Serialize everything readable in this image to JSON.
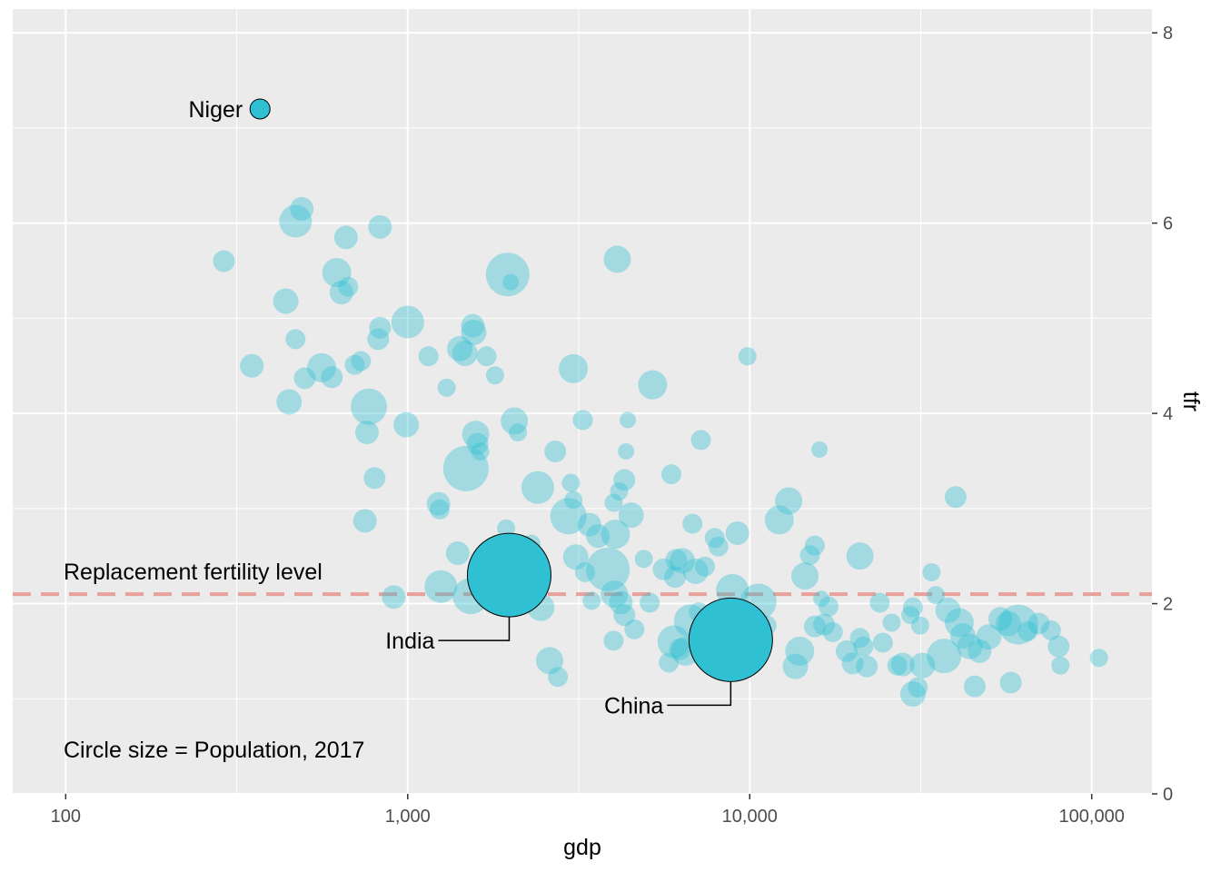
{
  "chart_data": {
    "type": "scatter",
    "xlabel": "gdp",
    "ylabel": "tfr",
    "x_scale": "log10",
    "xlim": [
      70,
      150000
    ],
    "ylim": [
      0,
      8.25
    ],
    "x_ticks": [
      {
        "value": 100,
        "label": "100"
      },
      {
        "value": 1000,
        "label": "1,000"
      },
      {
        "value": 10000,
        "label": "10,000"
      },
      {
        "value": 100000,
        "label": "100,000"
      }
    ],
    "y_ticks": [
      {
        "value": 0,
        "label": "0"
      },
      {
        "value": 2,
        "label": "2"
      },
      {
        "value": 4,
        "label": "4"
      },
      {
        "value": 6,
        "label": "6"
      },
      {
        "value": 8,
        "label": "8"
      }
    ],
    "y_axis_position": "right",
    "grid": true,
    "reference_line": {
      "y": 2.1,
      "label": "Replacement fertility level",
      "color": "#e8a09a",
      "label_color": "#e07b72"
    },
    "size_note": "Circle size = Population, 2017",
    "colors": {
      "point": "#2fc1d3",
      "panel": "#ebebeb",
      "grid": "#ffffff",
      "note": "#7f7f7f"
    },
    "highlighted": [
      {
        "name": "Niger",
        "gdp": 370,
        "tfr": 7.2,
        "size": 11
      },
      {
        "name": "India",
        "gdp": 1980,
        "tfr": 2.3,
        "size": 46
      },
      {
        "name": "China",
        "gdp": 8800,
        "tfr": 1.62,
        "size": 46
      }
    ],
    "points": [
      [
        290,
        5.6,
        12
      ],
      [
        350,
        4.5,
        13
      ],
      [
        440,
        5.18,
        14
      ],
      [
        450,
        4.12,
        14
      ],
      [
        470,
        4.78,
        11
      ],
      [
        470,
        6.02,
        18
      ],
      [
        490,
        6.15,
        13
      ],
      [
        500,
        4.37,
        12
      ],
      [
        560,
        4.48,
        16
      ],
      [
        600,
        4.38,
        12
      ],
      [
        620,
        5.48,
        16
      ],
      [
        640,
        5.27,
        13
      ],
      [
        660,
        5.85,
        13
      ],
      [
        670,
        5.33,
        11
      ],
      [
        700,
        4.51,
        11
      ],
      [
        730,
        4.55,
        11
      ],
      [
        750,
        2.87,
        13
      ],
      [
        760,
        3.8,
        13
      ],
      [
        770,
        4.07,
        20
      ],
      [
        800,
        3.32,
        12
      ],
      [
        820,
        4.78,
        12
      ],
      [
        830,
        4.9,
        12
      ],
      [
        830,
        5.96,
        13
      ],
      [
        910,
        2.07,
        13
      ],
      [
        990,
        3.88,
        14
      ],
      [
        1000,
        4.96,
        18
      ],
      [
        1150,
        4.6,
        11
      ],
      [
        1230,
        3.05,
        13
      ],
      [
        1240,
        2.99,
        11
      ],
      [
        1250,
        2.18,
        18
      ],
      [
        1300,
        4.27,
        10
      ],
      [
        1400,
        2.53,
        13
      ],
      [
        1420,
        4.68,
        14
      ],
      [
        1470,
        4.63,
        14
      ],
      [
        1480,
        3.42,
        25
      ],
      [
        1530,
        2.08,
        20
      ],
      [
        1550,
        4.92,
        13
      ],
      [
        1560,
        4.85,
        14
      ],
      [
        1580,
        3.78,
        15
      ],
      [
        1600,
        3.68,
        12
      ],
      [
        1630,
        3.6,
        10
      ],
      [
        1700,
        4.6,
        11
      ],
      [
        1800,
        4.4,
        10
      ],
      [
        1940,
        2.79,
        10
      ],
      [
        1960,
        5.46,
        24
      ],
      [
        2000,
        5.38,
        9
      ],
      [
        2050,
        3.92,
        15
      ],
      [
        2100,
        3.8,
        10
      ],
      [
        2300,
        2.63,
        10
      ],
      [
        2400,
        3.22,
        18
      ],
      [
        2450,
        1.96,
        15
      ],
      [
        2600,
        1.4,
        15
      ],
      [
        2700,
        3.6,
        12
      ],
      [
        2750,
        1.23,
        11
      ],
      [
        2950,
        2.92,
        20
      ],
      [
        3000,
        3.27,
        10
      ],
      [
        3050,
        3.09,
        10
      ],
      [
        3050,
        4.47,
        16
      ],
      [
        3100,
        2.49,
        14
      ],
      [
        3250,
        3.93,
        11
      ],
      [
        3300,
        2.33,
        11
      ],
      [
        3400,
        2.83,
        13
      ],
      [
        3450,
        2.03,
        10
      ],
      [
        3600,
        2.71,
        13
      ],
      [
        3850,
        2.36,
        24
      ],
      [
        4000,
        3.06,
        10
      ],
      [
        4000,
        1.61,
        11
      ],
      [
        4020,
        2.1,
        15
      ],
      [
        4050,
        2.73,
        16
      ],
      [
        4100,
        5.62,
        15
      ],
      [
        4150,
        3.18,
        10
      ],
      [
        4200,
        2.01,
        13
      ],
      [
        4300,
        1.88,
        12
      ],
      [
        4300,
        3.3,
        12
      ],
      [
        4350,
        3.6,
        9
      ],
      [
        4400,
        3.93,
        9
      ],
      [
        4500,
        2.93,
        14
      ],
      [
        4600,
        1.73,
        11
      ],
      [
        4900,
        2.47,
        10
      ],
      [
        5100,
        2.01,
        11
      ],
      [
        5200,
        4.3,
        16
      ],
      [
        5600,
        2.36,
        12
      ],
      [
        5800,
        1.38,
        11
      ],
      [
        5900,
        3.36,
        11
      ],
      [
        6000,
        1.6,
        18
      ],
      [
        6050,
        2.28,
        12
      ],
      [
        6100,
        2.46,
        12
      ],
      [
        6250,
        1.52,
        12
      ],
      [
        6350,
        2.45,
        14
      ],
      [
        6500,
        1.5,
        16
      ],
      [
        6700,
        1.82,
        18
      ],
      [
        6800,
        2.84,
        11
      ],
      [
        6950,
        2.34,
        14
      ],
      [
        7100,
        1.91,
        11
      ],
      [
        7200,
        3.72,
        11
      ],
      [
        7400,
        2.39,
        11
      ],
      [
        7900,
        2.69,
        11
      ],
      [
        8100,
        2.6,
        11
      ],
      [
        8900,
        2.14,
        18
      ],
      [
        9200,
        2.74,
        13
      ],
      [
        9850,
        4.6,
        10
      ],
      [
        10600,
        2.02,
        20
      ],
      [
        11200,
        1.77,
        11
      ],
      [
        12200,
        2.88,
        16
      ],
      [
        13000,
        3.08,
        15
      ],
      [
        13600,
        1.34,
        14
      ],
      [
        14000,
        1.5,
        16
      ],
      [
        14500,
        2.29,
        15
      ],
      [
        15000,
        2.51,
        11
      ],
      [
        15500,
        2.61,
        11
      ],
      [
        16000,
        3.62,
        9
      ],
      [
        15500,
        1.76,
        12
      ],
      [
        16200,
        2.05,
        9
      ],
      [
        16500,
        1.78,
        12
      ],
      [
        17000,
        1.97,
        11
      ],
      [
        17500,
        1.7,
        11
      ],
      [
        19200,
        1.5,
        12
      ],
      [
        20000,
        1.37,
        12
      ],
      [
        21000,
        2.5,
        15
      ],
      [
        21000,
        1.64,
        11
      ],
      [
        21500,
        1.55,
        11
      ],
      [
        22000,
        1.34,
        12
      ],
      [
        24000,
        2.01,
        11
      ],
      [
        24500,
        1.59,
        11
      ],
      [
        26000,
        1.8,
        10
      ],
      [
        27000,
        1.35,
        11
      ],
      [
        28000,
        1.36,
        13
      ],
      [
        29500,
        1.88,
        10
      ],
      [
        30000,
        1.96,
        11
      ],
      [
        30000,
        1.05,
        14
      ],
      [
        31000,
        1.12,
        11
      ],
      [
        31500,
        1.77,
        10
      ],
      [
        32000,
        1.35,
        14
      ],
      [
        34000,
        2.33,
        10
      ],
      [
        35000,
        2.09,
        10
      ],
      [
        37000,
        1.45,
        19
      ],
      [
        38000,
        1.93,
        14
      ],
      [
        40000,
        3.12,
        12
      ],
      [
        41000,
        1.8,
        16
      ],
      [
        42000,
        1.66,
        14
      ],
      [
        44000,
        1.55,
        14
      ],
      [
        45500,
        1.13,
        12
      ],
      [
        47000,
        1.5,
        13
      ],
      [
        50000,
        1.65,
        14
      ],
      [
        54000,
        1.84,
        13
      ],
      [
        57000,
        1.79,
        14
      ],
      [
        58000,
        1.17,
        12
      ],
      [
        61000,
        1.78,
        22
      ],
      [
        65000,
        1.71,
        11
      ],
      [
        70000,
        1.79,
        12
      ],
      [
        76000,
        1.72,
        11
      ],
      [
        80000,
        1.55,
        12
      ],
      [
        81000,
        1.35,
        10
      ],
      [
        105000,
        1.43,
        10
      ]
    ]
  }
}
